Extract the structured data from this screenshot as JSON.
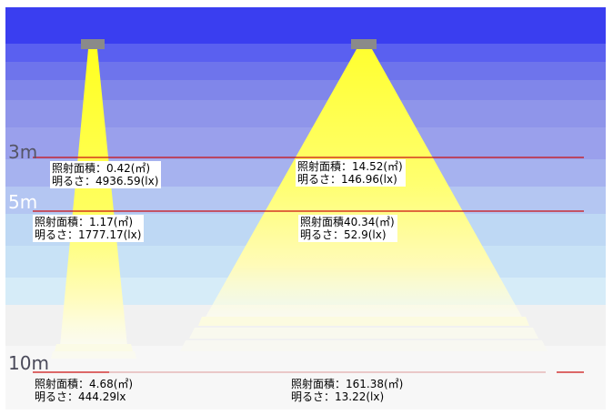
{
  "distances": {
    "d3": "3m",
    "d5": "5m",
    "d10": "10m"
  },
  "narrow_beam": {
    "at_3m": {
      "area": "照射面積：0.42(㎡)",
      "brightness": "明るさ：4936.59(lx)"
    },
    "at_5m": {
      "area": "照射面積：1.17(㎡)",
      "brightness": "明るさ：1777.17(lx)"
    },
    "at_10m": {
      "area": "照射面積：4.68(㎡)",
      "brightness": "明るさ：444.29lx"
    }
  },
  "wide_beam": {
    "at_3m": {
      "area": "照射面積：14.52(㎡)",
      "brightness": "明るさ：146.96(lx)"
    },
    "at_5m": {
      "area": "照射面積40.34(㎡)",
      "brightness": "明るさ：52.9(lx)"
    },
    "at_10m": {
      "area": "照射面積：161.38(㎡)",
      "brightness": "明るさ：13.22(lx)"
    }
  },
  "colors": {
    "sky_top": "#3a3ef0",
    "sky_mid": "#9aa0ec",
    "sky_low": "#cfe6f7",
    "floor": "#f4f4f4",
    "beam_core": "#ffff33",
    "beam_edge": "#fffbc8",
    "fixture": "#8a8a8a",
    "distance_line": "#cc1111"
  }
}
